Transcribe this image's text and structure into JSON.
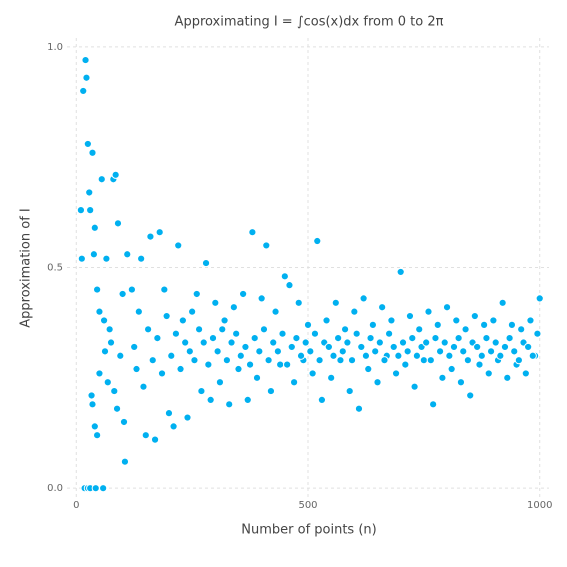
{
  "chart_data": {
    "type": "scatter",
    "title": "Approximating I = ∫cos(x)dx from 0 to 2π",
    "xlabel": "Number of points (n)",
    "ylabel": "Approximation of I",
    "color": "#00b0f0",
    "grid": true,
    "xlim": [
      -20,
      1020
    ],
    "ylim": [
      -0.02,
      1.02
    ],
    "xticks": [
      0,
      500,
      1000
    ],
    "yticks": [
      {
        "value": 0,
        "label": "0.0"
      },
      {
        "value": 0.5,
        "label": "0.5"
      },
      {
        "value": 1,
        "label": "1.0"
      }
    ],
    "x": [
      10,
      12,
      15,
      18,
      20,
      22,
      25,
      25,
      28,
      30,
      30,
      33,
      35,
      35,
      38,
      40,
      40,
      42,
      45,
      45,
      50,
      50,
      55,
      58,
      60,
      62,
      65,
      68,
      72,
      75,
      80,
      82,
      85,
      88,
      90,
      95,
      100,
      103,
      105,
      110,
      120,
      130,
      140,
      150,
      160,
      170,
      180,
      190,
      200,
      210,
      220,
      230,
      240,
      250,
      260,
      270,
      280,
      290,
      300,
      310,
      320,
      330,
      340,
      350,
      360,
      370,
      380,
      390,
      400,
      410,
      420,
      430,
      440,
      450,
      460,
      470,
      480,
      490,
      500,
      510,
      520,
      530,
      540,
      550,
      560,
      570,
      580,
      590,
      600,
      610,
      620,
      630,
      640,
      650,
      660,
      670,
      680,
      690,
      700,
      710,
      720,
      730,
      740,
      750,
      760,
      770,
      780,
      790,
      800,
      810,
      820,
      830,
      840,
      850,
      860,
      870,
      880,
      890,
      900,
      910,
      920,
      930,
      940,
      950,
      960,
      970,
      980,
      990,
      1000,
      125,
      135,
      145,
      155,
      165,
      175,
      185,
      195,
      205,
      215,
      225,
      235,
      245,
      255,
      265,
      275,
      285,
      295,
      305,
      315,
      325,
      335,
      345,
      355,
      365,
      375,
      385,
      395,
      405,
      415,
      425,
      435,
      445,
      455,
      465,
      475,
      485,
      495,
      505,
      515,
      525,
      535,
      545,
      555,
      565,
      575,
      585,
      595,
      605,
      615,
      625,
      635,
      645,
      655,
      665,
      675,
      685,
      695,
      705,
      715,
      725,
      735,
      745,
      755,
      765,
      775,
      785,
      795,
      805,
      815,
      825,
      835,
      845,
      855,
      865,
      875,
      885,
      895,
      905,
      915,
      925,
      935,
      945,
      955,
      965,
      975,
      985,
      995
    ],
    "values": [
      0.63,
      0.52,
      0.9,
      0,
      0.97,
      0.93,
      0.78,
      0,
      0.67,
      0,
      0.63,
      0.21,
      0.76,
      0.19,
      0.53,
      0.59,
      0.14,
      0,
      0.45,
      0.12,
      0.4,
      0.26,
      0.7,
      0,
      0.38,
      0.31,
      0.52,
      0.24,
      0.36,
      0.33,
      0.7,
      0.22,
      0.71,
      0.18,
      0.6,
      0.3,
      0.44,
      0.15,
      0.06,
      0.53,
      0.45,
      0.27,
      0.52,
      0.12,
      0.57,
      0.11,
      0.58,
      0.45,
      0.17,
      0.14,
      0.55,
      0.38,
      0.16,
      0.4,
      0.44,
      0.22,
      0.51,
      0.2,
      0.42,
      0.24,
      0.38,
      0.19,
      0.41,
      0.27,
      0.44,
      0.2,
      0.58,
      0.25,
      0.43,
      0.55,
      0.22,
      0.4,
      0.28,
      0.48,
      0.46,
      0.24,
      0.42,
      0.29,
      0.37,
      0.26,
      0.56,
      0.2,
      0.38,
      0.25,
      0.42,
      0.29,
      0.36,
      0.22,
      0.4,
      0.18,
      0.43,
      0.27,
      0.37,
      0.24,
      0.41,
      0.3,
      0.38,
      0.26,
      0.49,
      0.28,
      0.39,
      0.23,
      0.36,
      0.29,
      0.4,
      0.19,
      0.37,
      0.25,
      0.41,
      0.27,
      0.38,
      0.24,
      0.36,
      0.21,
      0.39,
      0.28,
      0.37,
      0.26,
      0.38,
      0.29,
      0.42,
      0.25,
      0.37,
      0.28,
      0.36,
      0.26,
      0.38,
      0.3,
      0.43,
      0.32,
      0.4,
      0.23,
      0.36,
      0.29,
      0.34,
      0.26,
      0.39,
      0.3,
      0.35,
      0.27,
      0.33,
      0.31,
      0.29,
      0.36,
      0.33,
      0.28,
      0.34,
      0.31,
      0.36,
      0.29,
      0.33,
      0.35,
      0.3,
      0.32,
      0.28,
      0.34,
      0.31,
      0.36,
      0.29,
      0.33,
      0.31,
      0.35,
      0.28,
      0.32,
      0.34,
      0.3,
      0.33,
      0.31,
      0.35,
      0.29,
      0.33,
      0.32,
      0.3,
      0.34,
      0.31,
      0.33,
      0.29,
      0.35,
      0.32,
      0.3,
      0.34,
      0.31,
      0.33,
      0.29,
      0.35,
      0.32,
      0.3,
      0.33,
      0.31,
      0.34,
      0.3,
      0.32,
      0.33,
      0.29,
      0.34,
      0.31,
      0.33,
      0.3,
      0.32,
      0.34,
      0.31,
      0.29,
      0.33,
      0.32,
      0.3,
      0.34,
      0.31,
      0.33,
      0.3,
      0.32,
      0.34,
      0.31,
      0.29,
      0.33,
      0.32,
      0.3,
      0.35
    ]
  }
}
